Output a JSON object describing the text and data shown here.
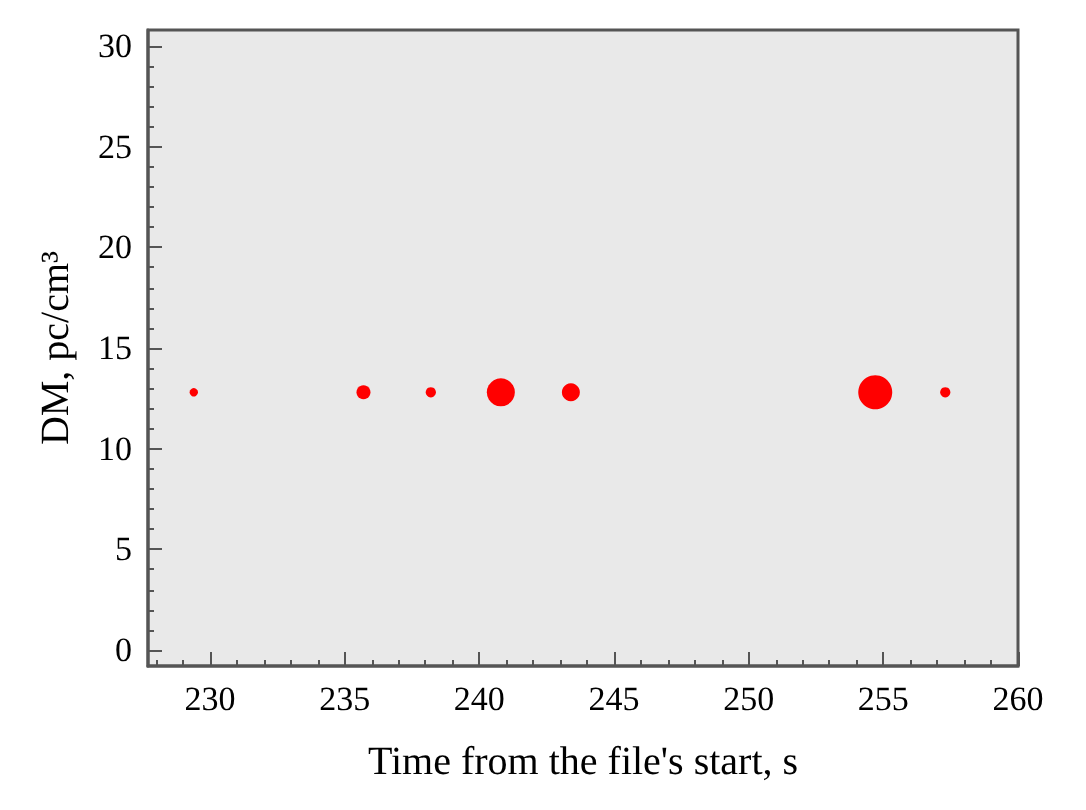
{
  "chart_data": {
    "type": "bubble",
    "xlabel": "Time from the file's start, s",
    "ylabel": "DM, pc/cm³",
    "x": [
      229.4,
      235.7,
      238.2,
      240.8,
      243.4,
      254.7,
      257.3
    ],
    "values": [
      12.8,
      12.8,
      12.8,
      12.8,
      12.8,
      12.8,
      12.8
    ],
    "sizes": [
      0.06,
      0.17,
      0.09,
      0.68,
      0.28,
      1,
      0.09
    ],
    "color": "#ff0000",
    "xlim": [
      227.7,
      260
    ],
    "xticks": [
      230,
      235,
      240,
      245,
      250,
      255,
      260
    ],
    "ylim": [
      -0.8,
      30.8
    ],
    "yticks": [
      0,
      5,
      10,
      15,
      20,
      25,
      30
    ]
  }
}
